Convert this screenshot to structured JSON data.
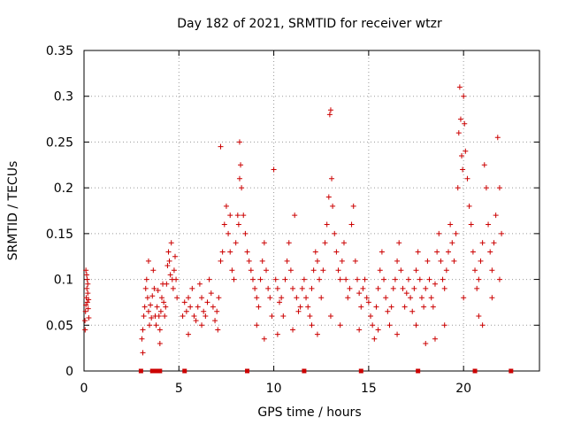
{
  "chart_data": {
    "type": "scatter",
    "title": "Day 182 of 2021, SRMTID for receiver wtzr",
    "xlabel": "GPS time / hours",
    "ylabel": "SRMTID / TECUs",
    "xlim": [
      0,
      24
    ],
    "ylim": [
      0,
      0.35
    ],
    "x_ticks": [
      0,
      5,
      10,
      15,
      20
    ],
    "y_ticks": [
      0,
      0.05,
      0.1,
      0.15,
      0.2,
      0.25,
      0.3,
      0.35
    ],
    "y_tick_labels": [
      "0",
      "0.05",
      "0.1",
      "0.15",
      "0.2",
      "0.25",
      "0.3",
      "0.35"
    ],
    "grid": true,
    "marker_color": "#cc0000",
    "series": [
      {
        "name": "SRMTID",
        "marker": "plus",
        "points": [
          [
            0.05,
            0.055
          ],
          [
            0.08,
            0.065
          ],
          [
            0.1,
            0.072
          ],
          [
            0.12,
            0.08
          ],
          [
            0.15,
            0.09
          ],
          [
            0.17,
            0.1
          ],
          [
            0.2,
            0.085
          ],
          [
            0.22,
            0.068
          ],
          [
            0.25,
            0.058
          ],
          [
            0.1,
            0.11
          ],
          [
            0.14,
            0.105
          ],
          [
            0.18,
            0.075
          ],
          [
            0.06,
            0.045
          ],
          [
            0.2,
            0.095
          ],
          [
            0.24,
            0.078
          ],
          [
            3.05,
            0.035
          ],
          [
            3.1,
            0.045
          ],
          [
            3.15,
            0.06
          ],
          [
            3.2,
            0.07
          ],
          [
            3.25,
            0.09
          ],
          [
            3.3,
            0.1
          ],
          [
            3.35,
            0.08
          ],
          [
            3.4,
            0.065
          ],
          [
            3.45,
            0.05
          ],
          [
            3.5,
            0.072
          ],
          [
            3.55,
            0.058
          ],
          [
            3.6,
            0.082
          ],
          [
            3.65,
            0.11
          ],
          [
            3.7,
            0.09
          ],
          [
            3.75,
            0.06
          ],
          [
            3.8,
            0.05
          ],
          [
            3.85,
            0.07
          ],
          [
            3.9,
            0.088
          ],
          [
            3.95,
            0.06
          ],
          [
            4.0,
            0.045
          ],
          [
            4.05,
            0.065
          ],
          [
            4.1,
            0.08
          ],
          [
            4.15,
            0.095
          ],
          [
            4.2,
            0.075
          ],
          [
            4.25,
            0.06
          ],
          [
            4.3,
            0.07
          ],
          [
            4.35,
            0.095
          ],
          [
            4.4,
            0.115
          ],
          [
            4.45,
            0.13
          ],
          [
            4.5,
            0.12
          ],
          [
            4.55,
            0.105
          ],
          [
            4.6,
            0.14
          ],
          [
            4.65,
            0.1
          ],
          [
            4.7,
            0.09
          ],
          [
            4.75,
            0.11
          ],
          [
            4.8,
            0.125
          ],
          [
            4.85,
            0.1
          ],
          [
            4.9,
            0.08
          ],
          [
            3.1,
            0.02
          ],
          [
            3.4,
            0.12
          ],
          [
            4.0,
            0.03
          ],
          [
            5.2,
            0.06
          ],
          [
            5.3,
            0.075
          ],
          [
            5.4,
            0.065
          ],
          [
            5.5,
            0.08
          ],
          [
            5.6,
            0.07
          ],
          [
            5.7,
            0.09
          ],
          [
            5.8,
            0.06
          ],
          [
            5.9,
            0.055
          ],
          [
            6.0,
            0.07
          ],
          [
            6.1,
            0.095
          ],
          [
            6.2,
            0.08
          ],
          [
            6.3,
            0.065
          ],
          [
            6.4,
            0.06
          ],
          [
            6.5,
            0.075
          ],
          [
            6.6,
            0.1
          ],
          [
            6.7,
            0.085
          ],
          [
            6.8,
            0.07
          ],
          [
            6.9,
            0.055
          ],
          [
            7.0,
            0.065
          ],
          [
            7.1,
            0.08
          ],
          [
            7.2,
            0.12
          ],
          [
            7.3,
            0.13
          ],
          [
            7.4,
            0.16
          ],
          [
            7.5,
            0.18
          ],
          [
            7.6,
            0.15
          ],
          [
            7.7,
            0.13
          ],
          [
            7.8,
            0.11
          ],
          [
            7.9,
            0.1
          ],
          [
            8.0,
            0.14
          ],
          [
            8.1,
            0.17
          ],
          [
            8.2,
            0.21
          ],
          [
            8.25,
            0.225
          ],
          [
            8.3,
            0.2
          ],
          [
            8.4,
            0.17
          ],
          [
            8.5,
            0.15
          ],
          [
            8.6,
            0.13
          ],
          [
            8.7,
            0.12
          ],
          [
            8.8,
            0.11
          ],
          [
            8.9,
            0.1
          ],
          [
            9.0,
            0.09
          ],
          [
            9.1,
            0.08
          ],
          [
            9.2,
            0.07
          ],
          [
            9.3,
            0.1
          ],
          [
            9.4,
            0.12
          ],
          [
            9.5,
            0.14
          ],
          [
            9.6,
            0.11
          ],
          [
            9.7,
            0.09
          ],
          [
            9.8,
            0.08
          ],
          [
            9.9,
            0.06
          ],
          [
            5.5,
            0.04
          ],
          [
            6.2,
            0.05
          ],
          [
            7.05,
            0.045
          ],
          [
            8.2,
            0.25
          ],
          [
            7.2,
            0.245
          ],
          [
            7.7,
            0.17
          ],
          [
            8.15,
            0.16
          ],
          [
            9.1,
            0.05
          ],
          [
            9.5,
            0.035
          ],
          [
            10.0,
            0.22
          ],
          [
            10.1,
            0.1
          ],
          [
            10.2,
            0.09
          ],
          [
            10.3,
            0.075
          ],
          [
            10.4,
            0.08
          ],
          [
            10.5,
            0.06
          ],
          [
            10.6,
            0.1
          ],
          [
            10.7,
            0.12
          ],
          [
            10.8,
            0.14
          ],
          [
            10.9,
            0.11
          ],
          [
            11.0,
            0.09
          ],
          [
            11.1,
            0.17
          ],
          [
            11.2,
            0.08
          ],
          [
            11.3,
            0.065
          ],
          [
            11.4,
            0.07
          ],
          [
            11.5,
            0.09
          ],
          [
            11.6,
            0.1
          ],
          [
            11.7,
            0.08
          ],
          [
            11.8,
            0.07
          ],
          [
            11.9,
            0.06
          ],
          [
            12.0,
            0.09
          ],
          [
            12.1,
            0.11
          ],
          [
            12.2,
            0.13
          ],
          [
            12.3,
            0.12
          ],
          [
            12.4,
            0.1
          ],
          [
            12.5,
            0.08
          ],
          [
            12.6,
            0.11
          ],
          [
            12.7,
            0.14
          ],
          [
            12.8,
            0.16
          ],
          [
            12.9,
            0.19
          ],
          [
            12.95,
            0.28
          ],
          [
            13.0,
            0.285
          ],
          [
            13.05,
            0.21
          ],
          [
            13.1,
            0.18
          ],
          [
            13.2,
            0.15
          ],
          [
            13.3,
            0.13
          ],
          [
            13.4,
            0.11
          ],
          [
            13.5,
            0.1
          ],
          [
            13.6,
            0.12
          ],
          [
            13.7,
            0.14
          ],
          [
            13.8,
            0.1
          ],
          [
            13.9,
            0.08
          ],
          [
            14.0,
            0.09
          ],
          [
            14.1,
            0.16
          ],
          [
            14.2,
            0.18
          ],
          [
            14.3,
            0.12
          ],
          [
            14.4,
            0.1
          ],
          [
            14.5,
            0.085
          ],
          [
            14.6,
            0.07
          ],
          [
            14.7,
            0.09
          ],
          [
            14.8,
            0.1
          ],
          [
            14.9,
            0.08
          ],
          [
            10.2,
            0.04
          ],
          [
            11.0,
            0.045
          ],
          [
            12.0,
            0.05
          ],
          [
            13.0,
            0.06
          ],
          [
            13.5,
            0.05
          ],
          [
            14.5,
            0.045
          ],
          [
            12.3,
            0.04
          ],
          [
            15.0,
            0.075
          ],
          [
            15.1,
            0.06
          ],
          [
            15.2,
            0.05
          ],
          [
            15.3,
            0.035
          ],
          [
            15.4,
            0.07
          ],
          [
            15.5,
            0.09
          ],
          [
            15.6,
            0.11
          ],
          [
            15.7,
            0.13
          ],
          [
            15.8,
            0.1
          ],
          [
            15.9,
            0.08
          ],
          [
            16.0,
            0.065
          ],
          [
            16.1,
            0.05
          ],
          [
            16.2,
            0.07
          ],
          [
            16.3,
            0.09
          ],
          [
            16.4,
            0.1
          ],
          [
            16.5,
            0.12
          ],
          [
            16.6,
            0.14
          ],
          [
            16.7,
            0.11
          ],
          [
            16.8,
            0.09
          ],
          [
            16.9,
            0.07
          ],
          [
            17.0,
            0.085
          ],
          [
            17.1,
            0.1
          ],
          [
            17.2,
            0.08
          ],
          [
            17.3,
            0.065
          ],
          [
            17.4,
            0.09
          ],
          [
            17.5,
            0.11
          ],
          [
            17.6,
            0.13
          ],
          [
            17.7,
            0.1
          ],
          [
            17.8,
            0.08
          ],
          [
            17.9,
            0.07
          ],
          [
            18.0,
            0.09
          ],
          [
            18.1,
            0.12
          ],
          [
            18.2,
            0.1
          ],
          [
            18.3,
            0.08
          ],
          [
            18.4,
            0.07
          ],
          [
            18.5,
            0.095
          ],
          [
            18.6,
            0.13
          ],
          [
            18.7,
            0.15
          ],
          [
            18.8,
            0.12
          ],
          [
            18.9,
            0.1
          ],
          [
            19.0,
            0.09
          ],
          [
            19.1,
            0.11
          ],
          [
            19.2,
            0.13
          ],
          [
            19.3,
            0.16
          ],
          [
            19.4,
            0.14
          ],
          [
            19.5,
            0.12
          ],
          [
            19.6,
            0.15
          ],
          [
            19.7,
            0.2
          ],
          [
            19.75,
            0.26
          ],
          [
            19.8,
            0.31
          ],
          [
            19.85,
            0.275
          ],
          [
            19.9,
            0.235
          ],
          [
            19.95,
            0.22
          ],
          [
            20.0,
            0.3
          ],
          [
            20.05,
            0.27
          ],
          [
            20.1,
            0.24
          ],
          [
            20.2,
            0.21
          ],
          [
            20.3,
            0.18
          ],
          [
            20.4,
            0.16
          ],
          [
            20.5,
            0.13
          ],
          [
            20.6,
            0.11
          ],
          [
            20.7,
            0.09
          ],
          [
            20.8,
            0.1
          ],
          [
            20.9,
            0.12
          ],
          [
            21.0,
            0.14
          ],
          [
            21.1,
            0.225
          ],
          [
            21.2,
            0.2
          ],
          [
            21.3,
            0.16
          ],
          [
            21.4,
            0.13
          ],
          [
            21.5,
            0.11
          ],
          [
            21.6,
            0.14
          ],
          [
            21.7,
            0.17
          ],
          [
            21.8,
            0.255
          ],
          [
            21.9,
            0.2
          ],
          [
            22.0,
            0.15
          ],
          [
            15.5,
            0.045
          ],
          [
            16.5,
            0.04
          ],
          [
            17.5,
            0.05
          ],
          [
            18.0,
            0.03
          ],
          [
            18.5,
            0.035
          ],
          [
            19.0,
            0.05
          ],
          [
            20.0,
            0.08
          ],
          [
            20.8,
            0.06
          ],
          [
            21.0,
            0.05
          ],
          [
            21.5,
            0.08
          ],
          [
            21.9,
            0.1
          ]
        ]
      }
    ],
    "data_gaps": [
      3.0,
      3.6,
      3.8,
      4.0,
      5.3,
      8.6,
      11.6,
      14.6,
      17.6,
      20.6,
      22.5
    ]
  }
}
